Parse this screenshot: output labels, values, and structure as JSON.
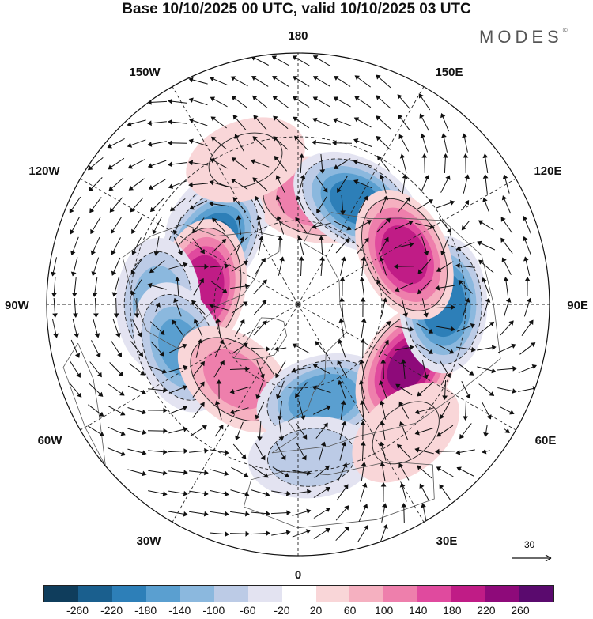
{
  "title": "Base 10/10/2025 00 UTC, valid 10/10/2025 03 UTC",
  "brand": "MODES",
  "brand_mark": "©",
  "longitude_labels": {
    "top": "180",
    "bottom": "0",
    "left": "90W",
    "right": "90E",
    "upper_left_1": "150W",
    "upper_left_2": "120W",
    "lower_left_1": "60W",
    "lower_left_2": "30W",
    "upper_right_1": "150E",
    "upper_right_2": "120E",
    "lower_right_1": "60E",
    "lower_right_2": "30E"
  },
  "reference_vector": {
    "label": "30"
  },
  "colorbar": {
    "colors": [
      "#0f3d5c",
      "#1a5f8e",
      "#2d7fb8",
      "#5a9fd0",
      "#8bb8de",
      "#bccbe6",
      "#e3e3f1",
      "#ffffff",
      "#f9d6d8",
      "#f5b0c0",
      "#ee7fac",
      "#e04a9e",
      "#c01c86",
      "#8e0a7a",
      "#5a0a6e"
    ],
    "ticks": [
      "-260",
      "-220",
      "-180",
      "-140",
      "-100",
      "-60",
      "-20",
      "20",
      "60",
      "100",
      "140",
      "180",
      "220",
      "260"
    ]
  },
  "anomaly_centers": [
    {
      "lon": -140,
      "lat": 48,
      "value": -120
    },
    {
      "lon": 170,
      "lat": 52,
      "value": 140
    },
    {
      "lon": 150,
      "lat": 48,
      "value": -200
    },
    {
      "lon": -125,
      "lat": 52,
      "value": -230
    },
    {
      "lon": -100,
      "lat": 55,
      "value": 220
    },
    {
      "lon": -90,
      "lat": 40,
      "value": -130
    },
    {
      "lon": -70,
      "lat": 45,
      "value": -150
    },
    {
      "lon": -40,
      "lat": 55,
      "value": 120
    },
    {
      "lon": 15,
      "lat": 55,
      "value": -180
    },
    {
      "lon": 5,
      "lat": 35,
      "value": -80
    },
    {
      "lon": 60,
      "lat": 45,
      "value": 230
    },
    {
      "lon": 90,
      "lat": 38,
      "value": -220
    },
    {
      "lon": 115,
      "lat": 48,
      "value": 210
    },
    {
      "lon": -160,
      "lat": 35,
      "value": 60
    },
    {
      "lon": 40,
      "lat": 30,
      "value": 60
    }
  ]
}
